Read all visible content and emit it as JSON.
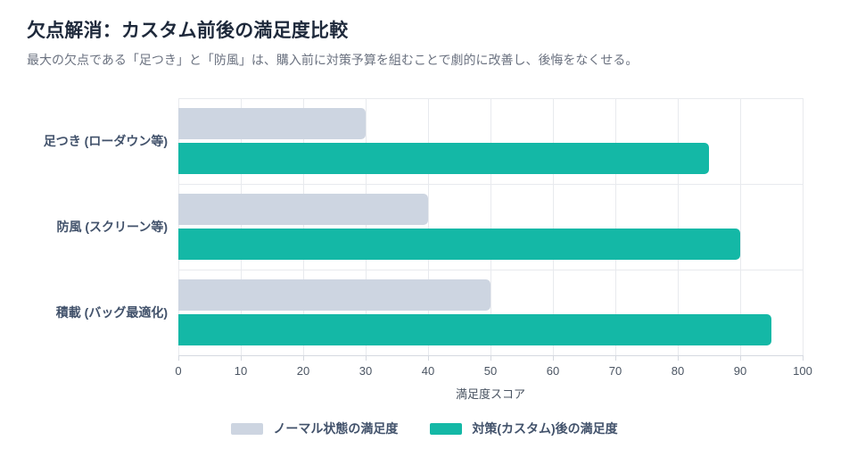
{
  "header": {
    "title": "欠点解消：カスタム前後の満足度比較",
    "subtitle": "最大の欠点である「足つき」と「防風」は、購入前に対策予算を組むことで劇的に改善し、後悔をなくせる。"
  },
  "chart_data": {
    "type": "bar",
    "orientation": "horizontal",
    "title": "欠点解消：カスタム前後の満足度比較",
    "subtitle": "最大の欠点である「足つき」と「防風」は、購入前に対策予算を組むことで劇的に改善し、後悔をなくせる。",
    "categories": [
      "足つき (ローダウン等)",
      "防風 (スクリーン等)",
      "積載 (バッグ最適化)"
    ],
    "series": [
      {
        "name": "ノーマル状態の満足度",
        "color": "#cdd5e1",
        "values": [
          30,
          40,
          50
        ]
      },
      {
        "name": "対策(カスタム)後の満足度",
        "color": "#14b8a6",
        "values": [
          85,
          90,
          95
        ]
      }
    ],
    "xlabel": "満足度スコア",
    "ylabel": "",
    "xlim": [
      0,
      100
    ],
    "xticks": [
      0,
      10,
      20,
      30,
      40,
      50,
      60,
      70,
      80,
      90,
      100
    ],
    "grid": true,
    "legend_position": "bottom"
  },
  "colors": {
    "title": "#1e293b",
    "subtitle": "#6b7280",
    "category_label": "#42526b",
    "tick_label": "#4b5563",
    "gridline": "#e8eaee",
    "axis_line": "#d5d9e0",
    "series_normal": "#cdd5e1",
    "series_custom": "#14b8a6"
  }
}
